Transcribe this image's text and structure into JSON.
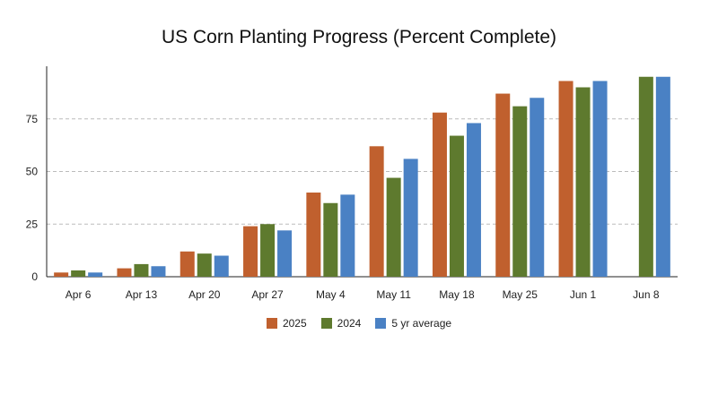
{
  "chart_data": {
    "type": "bar",
    "title": "US Corn Planting Progress (Percent Complete)",
    "xlabel": "",
    "ylabel": "",
    "categories": [
      "Apr 6",
      "Apr 13",
      "Apr 20",
      "Apr 27",
      "May 4",
      "May 11",
      "May 18",
      "May 25",
      "Jun 1",
      "Jun 8"
    ],
    "series": [
      {
        "name": "2025",
        "color": "#c0602e",
        "values": [
          2,
          4,
          12,
          24,
          40,
          62,
          78,
          87,
          93,
          null
        ]
      },
      {
        "name": "2024",
        "color": "#5e7a2e",
        "values": [
          3,
          6,
          11,
          25,
          35,
          47,
          67,
          81,
          90,
          95
        ]
      },
      {
        "name": "5 yr average",
        "color": "#4a81c4",
        "values": [
          2,
          5,
          10,
          22,
          39,
          56,
          73,
          85,
          93,
          95
        ]
      }
    ],
    "ylim": [
      0,
      100
    ],
    "yticks": [
      0,
      25,
      50,
      75
    ],
    "grid": true,
    "legend_position": "bottom-center"
  }
}
